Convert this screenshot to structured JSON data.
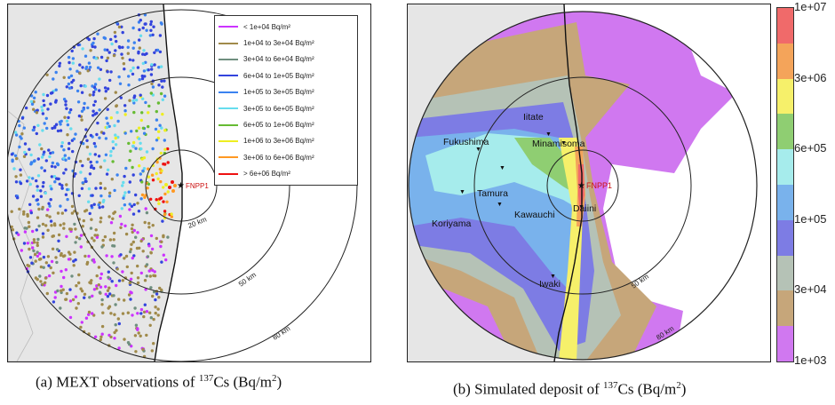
{
  "panel_a": {
    "caption_prefix": "(a)  MEXT observations of ",
    "caption_isotope_mass": "137",
    "caption_isotope": "Cs (Bq/m",
    "caption_exp": "2",
    "caption_suffix": ")",
    "plant_label": "FNPP1",
    "ring_labels": [
      "20 km",
      "50 km",
      "80 km"
    ],
    "legend": [
      {
        "label": "< 1e+04 Bq/m²",
        "color": "#cc33ff"
      },
      {
        "label": "1e+04 to 3e+04 Bq/m²",
        "color": "#a08a4a"
      },
      {
        "label": "3e+04 to 6e+04 Bq/m²",
        "color": "#6f8f7f"
      },
      {
        "label": "6e+04 to 1e+05 Bq/m²",
        "color": "#3344dd"
      },
      {
        "label": "1e+05 to 3e+05 Bq/m²",
        "color": "#3b82f0"
      },
      {
        "label": "3e+05 to 6e+05 Bq/m²",
        "color": "#66ddee"
      },
      {
        "label": "6e+05 to 1e+06 Bq/m²",
        "color": "#66bb33"
      },
      {
        "label": "1e+06 to 3e+06 Bq/m²",
        "color": "#eeee22"
      },
      {
        "label": "3e+06 to 6e+06 Bq/m²",
        "color": "#ff9922"
      },
      {
        "label": "> 6e+06 Bq/m²",
        "color": "#ee1111"
      }
    ]
  },
  "panel_b": {
    "caption_prefix": "(b)  Simulated deposit of ",
    "caption_isotope_mass": "137",
    "caption_isotope": "Cs (Bq/m",
    "caption_exp": "2",
    "caption_suffix": ")",
    "plant_label": "FNPP1",
    "ring_labels": [
      "50 km",
      "80 km"
    ],
    "towns": [
      "Fukushima",
      "Iitate",
      "Minamisoma",
      "Tamura",
      "Koriyama",
      "Kawauchi",
      "Daiini",
      "Iwaki"
    ],
    "colorbar": {
      "ticks": [
        "1e+07",
        "3e+06",
        "6e+05",
        "1e+05",
        "3e+04",
        "1e+03"
      ],
      "colors": [
        "#f06a6a",
        "#f4a45a",
        "#f6f06a",
        "#8fce72",
        "#a6ecec",
        "#79b2ec",
        "#7d7ce4",
        "#b5c2b6",
        "#c6a67a",
        "#d078f0"
      ]
    }
  },
  "colors": {
    "land": "#e6e6e6",
    "sea": "#ffffff",
    "ring": "#222222",
    "plant": "#cc1111"
  }
}
